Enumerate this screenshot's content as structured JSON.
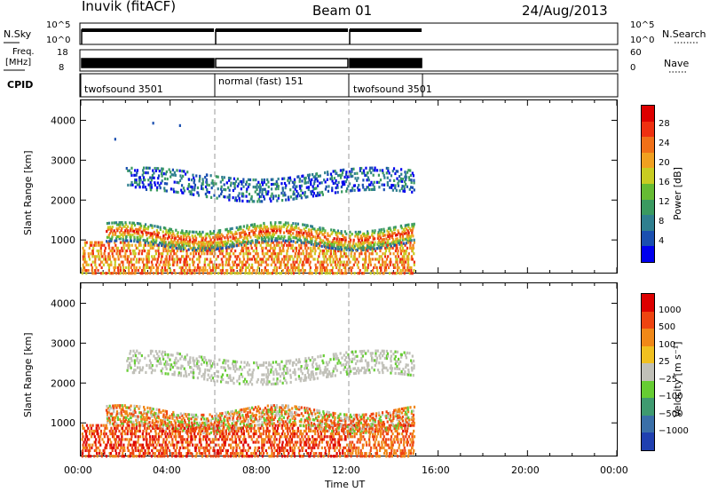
{
  "header": {
    "station": "Inuvik (fitACF)",
    "beam": "Beam 01",
    "date": "24/Aug/2013"
  },
  "small_panels": {
    "nsky_label": "N.Sky",
    "nsky_ticks": [
      "10^5",
      "10^0"
    ],
    "nsearch_label": "N.Search",
    "nsearch_ticks": [
      "10^5",
      "10^0"
    ],
    "freq_label": "Freq.",
    "freq_unit": "[MHz]",
    "freq_ticks": [
      "18",
      "8"
    ],
    "nave_label": "Nave",
    "nave_ticks": [
      "60",
      "0"
    ],
    "cpid_label": "CPID",
    "cpid_segments": [
      {
        "label": "twofsound 3501",
        "start": 0,
        "end": 6
      },
      {
        "label": "normal (fast) 151",
        "start": 6,
        "end": 12
      },
      {
        "label": "twofsound 3501",
        "start": 12,
        "end": 15.3
      }
    ]
  },
  "chart_data": [
    {
      "type": "heatmap",
      "name": "power-panel",
      "ylabel": "Slant Range [km]",
      "xlabel": "Time UT",
      "xlim": [
        0,
        24
      ],
      "ylim": [
        180,
        4500
      ],
      "yticks": [
        1000,
        2000,
        3000,
        4000
      ],
      "xticks": [
        "00:00",
        "04:00",
        "08:00",
        "12:00",
        "16:00",
        "20:00",
        "00:00"
      ],
      "colorbar": {
        "label": "Power [dB]",
        "ticks": [
          "4",
          "8",
          "12",
          "16",
          "20",
          "24",
          "28"
        ],
        "colors": [
          "#0000ee",
          "#1a4fb0",
          "#2f7f8f",
          "#3a9a60",
          "#66bb33",
          "#c8cc22",
          "#f0a020",
          "#f07018",
          "#ee3010",
          "#dd0000"
        ]
      },
      "data_end_hour": 14.8,
      "dashed_lines": [
        6,
        12
      ]
    },
    {
      "type": "heatmap",
      "name": "velocity-panel",
      "ylabel": "Slant Range [km]",
      "xlabel": "Time UT",
      "xlim": [
        0,
        24
      ],
      "ylim": [
        180,
        4500
      ],
      "yticks": [
        1000,
        2000,
        3000,
        4000
      ],
      "xticks": [
        "00:00",
        "04:00",
        "08:00",
        "12:00",
        "16:00",
        "20:00",
        "00:00"
      ],
      "colorbar": {
        "label": "Velocity [m s⁻¹]",
        "ticks": [
          "1000",
          "500",
          "100",
          "25",
          "−25",
          "−100",
          "−500",
          "−1000"
        ],
        "colors": [
          "#2040b0",
          "#3a6fa8",
          "#3f9a70",
          "#66cc33",
          "#c0c0b8",
          "#f0c020",
          "#f08818",
          "#ee4410",
          "#dd0000"
        ]
      },
      "data_end_hour": 14.8,
      "dashed_lines": [
        6,
        12
      ]
    }
  ],
  "axis": {
    "time_label": "Time UT",
    "xticks": [
      "00:00",
      "04:00",
      "08:00",
      "12:00",
      "16:00",
      "20:00",
      "00:00"
    ]
  }
}
